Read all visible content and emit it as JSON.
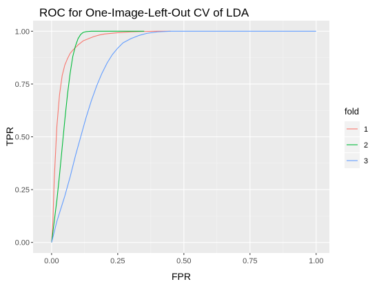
{
  "chart_data": {
    "type": "line",
    "title": "ROC for One-Image-Left-Out CV of LDA",
    "xlabel": "FPR",
    "ylabel": "TPR",
    "xlim": [
      -0.07,
      1.05
    ],
    "ylim": [
      -0.05,
      1.05
    ],
    "x_ticks": [
      0,
      0.25,
      0.5,
      0.75,
      1
    ],
    "x_tick_labels": [
      "0.00",
      "0.25",
      "0.50",
      "0.75",
      "1.00"
    ],
    "y_ticks": [
      0,
      0.25,
      0.5,
      0.75,
      1
    ],
    "y_tick_labels": [
      "0.00",
      "0.25",
      "0.50",
      "0.75",
      "1.00"
    ],
    "grid": true,
    "legend": {
      "title": "fold",
      "position": "right"
    },
    "series": [
      {
        "name": "1",
        "color": "#F8766D",
        "x": [
          0,
          0.005,
          0.01,
          0.02,
          0.03,
          0.04,
          0.05,
          0.06,
          0.07,
          0.08,
          0.1,
          0.12,
          0.14,
          0.16,
          0.18,
          0.2,
          0.25,
          0.3,
          0.35,
          0.4,
          0.45
        ],
        "y": [
          0,
          0.1,
          0.3,
          0.55,
          0.7,
          0.79,
          0.84,
          0.87,
          0.895,
          0.91,
          0.935,
          0.955,
          0.965,
          0.975,
          0.982,
          0.987,
          0.993,
          0.997,
          0.999,
          1.0,
          1.0
        ]
      },
      {
        "name": "2",
        "color": "#00BA38",
        "x": [
          0,
          0.005,
          0.01,
          0.02,
          0.03,
          0.04,
          0.05,
          0.06,
          0.07,
          0.08,
          0.09,
          0.1,
          0.11,
          0.12,
          0.13,
          0.15,
          0.2,
          0.25,
          0.3,
          0.35
        ],
        "y": [
          0,
          0.05,
          0.1,
          0.2,
          0.32,
          0.45,
          0.58,
          0.7,
          0.8,
          0.88,
          0.93,
          0.965,
          0.985,
          0.995,
          0.998,
          1.0,
          1.0,
          1.0,
          1.0,
          1.0
        ]
      },
      {
        "name": "3",
        "color": "#619CFF",
        "x": [
          0,
          0.01,
          0.02,
          0.03,
          0.05,
          0.07,
          0.09,
          0.11,
          0.13,
          0.15,
          0.17,
          0.19,
          0.21,
          0.23,
          0.25,
          0.27,
          0.3,
          0.33,
          0.36,
          0.4,
          0.45,
          0.5,
          0.6,
          0.7,
          0.8,
          0.9,
          1.0
        ],
        "y": [
          0,
          0.05,
          0.1,
          0.14,
          0.22,
          0.31,
          0.41,
          0.5,
          0.59,
          0.67,
          0.74,
          0.8,
          0.85,
          0.89,
          0.92,
          0.945,
          0.965,
          0.98,
          0.99,
          0.997,
          1.0,
          1.0,
          1.0,
          1.0,
          1.0,
          1.0,
          1.0
        ]
      }
    ]
  }
}
